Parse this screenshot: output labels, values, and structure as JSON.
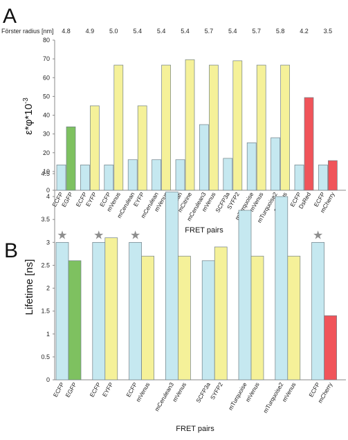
{
  "colors": {
    "donor": "#c5e8f0",
    "acceptor_yellow": "#f5f199",
    "acceptor_green": "#7ec160",
    "acceptor_red": "#f0545a",
    "bar_stroke": "#6f7f86",
    "axis": "#8a8a8a",
    "grid": "#d9d9d9",
    "star": "#8e8e8e"
  },
  "chart_data": [
    {
      "type": "bar",
      "panel_label": "A",
      "title": "",
      "xlabel": "FRET pairs",
      "ylabel": "ε*φ*10",
      "ylabel_exponent": "-3",
      "ylim": [
        0,
        80
      ],
      "yticks": [
        0,
        10,
        20,
        30,
        40,
        50,
        60,
        70,
        80
      ],
      "grid": false,
      "forster_label": "Förster radius [nm]",
      "pairs": [
        {
          "donor": "ECFP",
          "acceptor": "EGFP",
          "forster": "4.8",
          "values": [
            13.5,
            33.8
          ],
          "acceptor_color": "green"
        },
        {
          "donor": "ECFP",
          "acceptor": "EYFP",
          "forster": "4.9",
          "values": [
            13.5,
            45
          ],
          "acceptor_color": "yellow"
        },
        {
          "donor": "ECFP",
          "acceptor": "mVenus",
          "forster": "5.0",
          "values": [
            13.5,
            66.7
          ],
          "acceptor_color": "yellow"
        },
        {
          "donor": "mCerulean",
          "acceptor": "EYFP",
          "forster": "5.4",
          "values": [
            16.3,
            45
          ],
          "acceptor_color": "yellow"
        },
        {
          "donor": "mCerulean",
          "acceptor": "mVenus",
          "forster": "5.4",
          "values": [
            16.3,
            66.7
          ],
          "acceptor_color": "yellow"
        },
        {
          "donor": "mCerulean",
          "acceptor": "mCitrine",
          "forster": "5.4",
          "values": [
            16.3,
            69.6
          ],
          "acceptor_color": "yellow"
        },
        {
          "donor": "mCerulean3",
          "acceptor": "mVenus",
          "forster": "5.7",
          "values": [
            35,
            66.7
          ],
          "acceptor_color": "yellow"
        },
        {
          "donor": "SCFP3a",
          "acceptor": "SYFP2",
          "forster": "5.4",
          "values": [
            17,
            69
          ],
          "acceptor_color": "yellow"
        },
        {
          "donor": "mTurquoise",
          "acceptor": "mVenus",
          "forster": "5.7",
          "values": [
            25.3,
            66.7
          ],
          "acceptor_color": "yellow"
        },
        {
          "donor": "mTurquoise2",
          "acceptor": "mVenus",
          "forster": "5.8",
          "values": [
            28,
            66.7
          ],
          "acceptor_color": "yellow"
        },
        {
          "donor": "ECFP",
          "acceptor": "DsRed",
          "forster": "4.2",
          "values": [
            13.5,
            49.4
          ],
          "acceptor_color": "red"
        },
        {
          "donor": "ECFP",
          "acceptor": "mCherry",
          "forster": "3.5",
          "values": [
            13.5,
            15.8
          ],
          "acceptor_color": "red"
        }
      ]
    },
    {
      "type": "bar",
      "panel_label": "B",
      "title": "",
      "xlabel": "FRET pairs",
      "ylabel": "Lifetime [ns]",
      "ylim": [
        0,
        4.5
      ],
      "yticks": [
        "0",
        "0.5",
        "1",
        "1.5",
        "2",
        "2.5",
        "3",
        "3.5",
        "4",
        "4.5"
      ],
      "grid": false,
      "pairs": [
        {
          "donor": "ECFP",
          "acceptor": "EGFP",
          "values": [
            3.0,
            2.6
          ],
          "acceptor_color": "green",
          "star": true
        },
        {
          "donor": "ECFP",
          "acceptor": "EYFP",
          "values": [
            3.0,
            3.1
          ],
          "acceptor_color": "yellow",
          "star": true
        },
        {
          "donor": "ECFP",
          "acceptor": "mVenus",
          "values": [
            3.0,
            2.7
          ],
          "acceptor_color": "yellow",
          "star": true
        },
        {
          "donor": "mCerulean3",
          "acceptor": "mVenus",
          "values": [
            4.1,
            2.7
          ],
          "acceptor_color": "yellow",
          "star": false
        },
        {
          "donor": "SCFP3a",
          "acceptor": "SYFP2",
          "values": [
            2.6,
            2.9
          ],
          "acceptor_color": "yellow",
          "star": false
        },
        {
          "donor": "mTurquoise",
          "acceptor": "mVenus",
          "values": [
            3.7,
            2.7
          ],
          "acceptor_color": "yellow",
          "star": false
        },
        {
          "donor": "mTurquoise2",
          "acceptor": "mVenus",
          "values": [
            4.0,
            2.7
          ],
          "acceptor_color": "yellow",
          "star": false
        },
        {
          "donor": "ECFP",
          "acceptor": "mCherry",
          "values": [
            3.0,
            1.4
          ],
          "acceptor_color": "red",
          "star": true
        }
      ],
      "star_symbol": "★"
    }
  ]
}
